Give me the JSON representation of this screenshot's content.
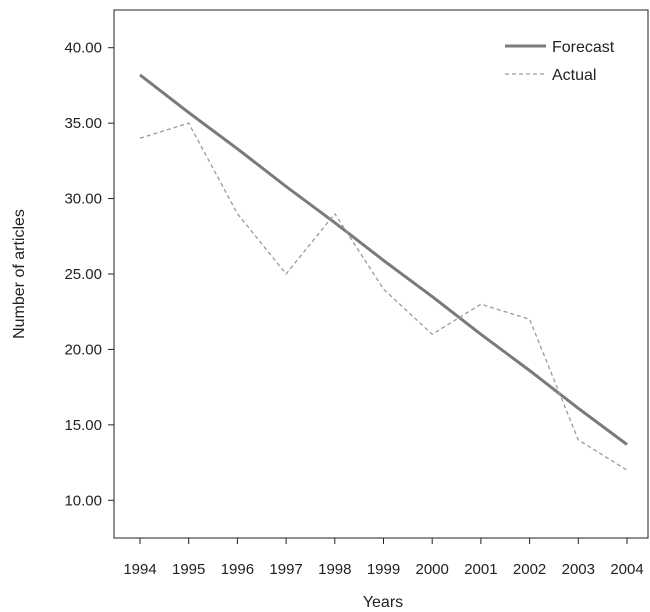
{
  "chart_data": {
    "type": "line",
    "title": "",
    "xlabel": "Years",
    "ylabel": "Number of articles",
    "x": [
      "1994",
      "1995",
      "1996",
      "1997",
      "1998",
      "1999",
      "2000",
      "2001",
      "2002",
      "2003",
      "2004"
    ],
    "ylim": [
      7.5,
      42.5
    ],
    "yticks": [
      "10.00",
      "15.00",
      "20.00",
      "25.00",
      "30.00",
      "35.00",
      "40.00"
    ],
    "grid": false,
    "legend_position": "top-right",
    "series": [
      {
        "name": "Forecast",
        "style": "solid",
        "color": "#7a7a7a",
        "values": [
          38.2,
          35.7,
          33.3,
          30.8,
          28.4,
          25.9,
          23.5,
          21.0,
          18.6,
          16.1,
          13.7
        ]
      },
      {
        "name": "Actual",
        "style": "dashed",
        "color": "#9a9a9a",
        "values": [
          34,
          35,
          29,
          25,
          29,
          24,
          21,
          23,
          22,
          14,
          12
        ]
      }
    ]
  }
}
